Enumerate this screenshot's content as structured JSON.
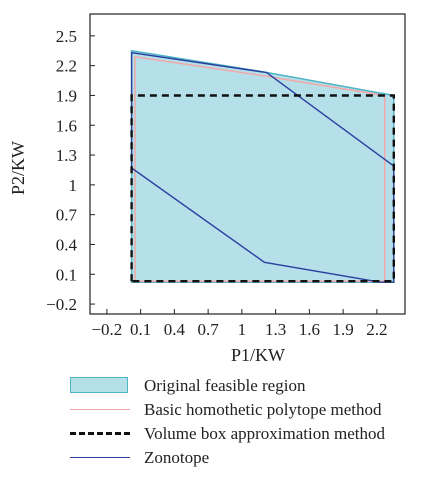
{
  "colors": {
    "original_fill": "#b5e0ea",
    "original_edge": "#4fb3c4",
    "homothetic": "#f2a8a8",
    "box": "#111111",
    "zonotope": "#2b3f9e",
    "axis": "#222222"
  },
  "chart_data": {
    "type": "line",
    "xlabel": "P1/KW",
    "ylabel": "P2/KW",
    "xlim": [
      -0.35,
      2.45
    ],
    "ylim": [
      -0.3,
      2.72
    ],
    "xticks": [
      "−0.2",
      "0.1",
      "0.4",
      "0.7",
      "1",
      "1.3",
      "1.6",
      "1.9",
      "2.2"
    ],
    "xtick_values": [
      -0.2,
      0.1,
      0.4,
      0.7,
      1.0,
      1.3,
      1.6,
      1.9,
      2.2
    ],
    "yticks": [
      "−0.2",
      "0.1",
      "0.4",
      "0.7",
      "1",
      "1.3",
      "1.6",
      "1.9",
      "2.2",
      "2.5"
    ],
    "ytick_values": [
      -0.2,
      0.1,
      0.4,
      0.7,
      1.0,
      1.3,
      1.6,
      1.9,
      2.2,
      2.5
    ],
    "series": [
      {
        "name": "Original feasible region",
        "kind": "area",
        "points": [
          [
            0.02,
            0.02
          ],
          [
            0.02,
            2.35
          ],
          [
            1.18,
            2.14
          ],
          [
            2.35,
            1.9
          ],
          [
            2.35,
            0.02
          ]
        ]
      },
      {
        "name": "Basic homothetic polytope method",
        "kind": "polygon",
        "points": [
          [
            0.05,
            0.03
          ],
          [
            0.05,
            2.29
          ],
          [
            1.18,
            2.1
          ],
          [
            2.27,
            1.9
          ],
          [
            2.27,
            0.03
          ]
        ]
      },
      {
        "name": "Volume box approximation method",
        "kind": "dashed-rect",
        "points": [
          [
            0.02,
            0.03
          ],
          [
            0.02,
            1.9
          ],
          [
            2.35,
            1.9
          ],
          [
            2.35,
            0.03
          ]
        ]
      },
      {
        "name": "Zonotope",
        "kind": "polygon",
        "points": [
          [
            0.02,
            1.17
          ],
          [
            0.02,
            2.33
          ],
          [
            1.22,
            2.13
          ],
          [
            2.35,
            1.19
          ],
          [
            2.35,
            0.02
          ],
          [
            2.23,
            0.02
          ],
          [
            1.2,
            0.22
          ]
        ]
      }
    ]
  },
  "legend": {
    "items": [
      {
        "label": "Original feasible region"
      },
      {
        "label": "Basic homothetic polytope method"
      },
      {
        "label": "Volume box approximation method"
      },
      {
        "label": "Zonotope"
      }
    ]
  }
}
